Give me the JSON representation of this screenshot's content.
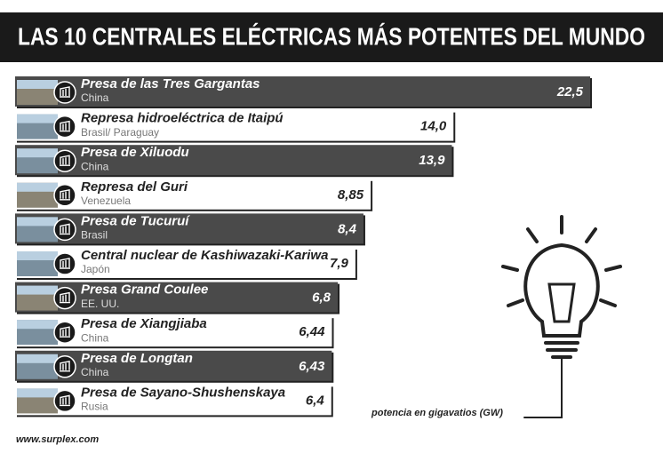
{
  "chart_data": {
    "type": "bar",
    "title": "LAS 10 CENTRALES ELÉCTRICAS MÁS POTENTES DEL MUNDO",
    "categories": [
      "Presa de las Tres Gargantas",
      "Represa hidroeléctrica de Itaipú",
      "Presa de Xiluodu",
      "Represa del Guri",
      "Presa de Tucuruí",
      "Central nuclear de Kashiwazaki-Kariwa",
      "Presa Grand Coulee",
      "Presa de Xiangjiaba",
      "Presa de Longtan",
      "Presa de Sayano-Shushenskaya"
    ],
    "countries": [
      "China",
      "Brasil/ Paraguay",
      "China",
      "Venezuela",
      "Brasil",
      "Japón",
      "EE. UU.",
      "China",
      "China",
      "Rusia"
    ],
    "values": [
      22.5,
      14.0,
      13.9,
      8.85,
      8.4,
      7.9,
      6.8,
      6.44,
      6.43,
      6.4
    ],
    "value_labels": [
      "22,5",
      "14,0",
      "13,9",
      "8,85",
      "8,4",
      "7,9",
      "6,8",
      "6,44",
      "6,43",
      "6,4"
    ],
    "value_axis_label": "potencia en gigavatios (GW)",
    "source": "www.surplex.com"
  }
}
